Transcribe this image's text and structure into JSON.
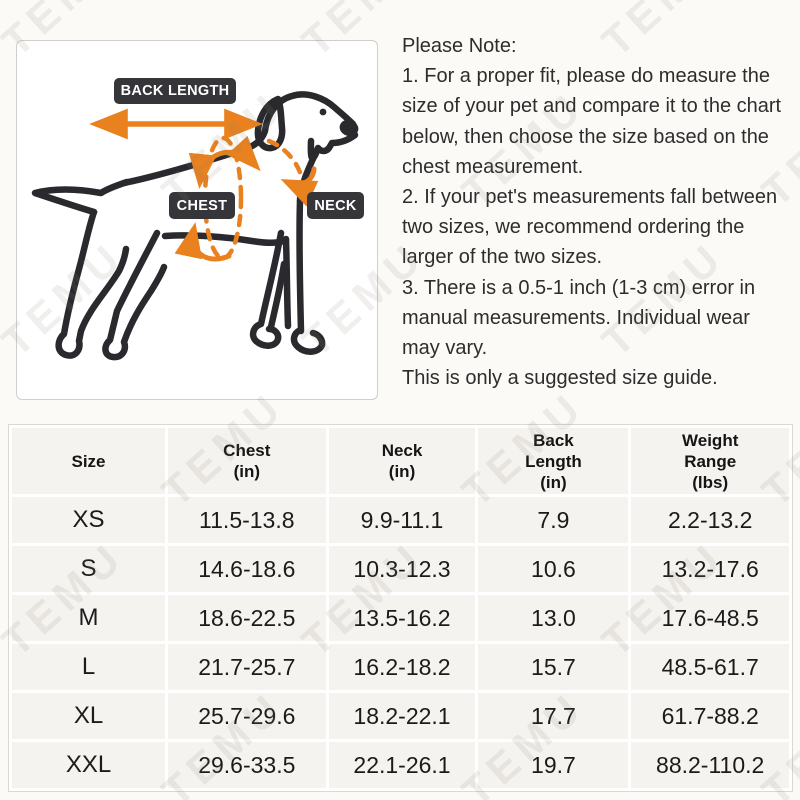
{
  "diagram": {
    "back_length_label": "BACK LENGTH",
    "chest_label": "CHEST",
    "neck_label": "NECK",
    "outline_color": "#2a2a2e",
    "accent_color": "#e8811e",
    "badge_color": "#35353a"
  },
  "note": {
    "lines": [
      "Please Note:",
      "1. For a proper fit, please do measure the",
      "size of your pet and compare it to the chart",
      "below, then choose the size based on the",
      "chest measurement.",
      "2. If your pet's measurements fall between",
      "two sizes, we recommend ordering the",
      "larger of the two sizes.",
      "3. There is a 0.5-1 inch (1-3 cm) error in",
      "manual measurements. Individual wear",
      "may vary.",
      "This is only a suggested size guide."
    ]
  },
  "table": {
    "headers": [
      "Size",
      "Chest\n(in)",
      "Neck\n(in)",
      "Back\nLength\n(in)",
      "Weight\nRange\n(lbs)"
    ],
    "rows": [
      {
        "size": "XS",
        "chest": "11.5-13.8",
        "neck": "9.9-11.1",
        "back_length": "7.9",
        "weight": "2.2-13.2"
      },
      {
        "size": "S",
        "chest": "14.6-18.6",
        "neck": "10.3-12.3",
        "back_length": "10.6",
        "weight": "13.2-17.6"
      },
      {
        "size": "M",
        "chest": "18.6-22.5",
        "neck": "13.5-16.2",
        "back_length": "13.0",
        "weight": "17.6-48.5"
      },
      {
        "size": "L",
        "chest": "21.7-25.7",
        "neck": "16.2-18.2",
        "back_length": "15.7",
        "weight": "48.5-61.7"
      },
      {
        "size": "XL",
        "chest": "25.7-29.6",
        "neck": "18.2-22.1",
        "back_length": "17.7",
        "weight": "61.7-88.2"
      },
      {
        "size": "XXL",
        "chest": "29.6-33.5",
        "neck": "22.1-26.1",
        "back_length": "19.7",
        "weight": "88.2-110.2"
      }
    ]
  },
  "watermark": {
    "text": "TEMU",
    "color": "rgba(138,130,115,0.13)"
  }
}
